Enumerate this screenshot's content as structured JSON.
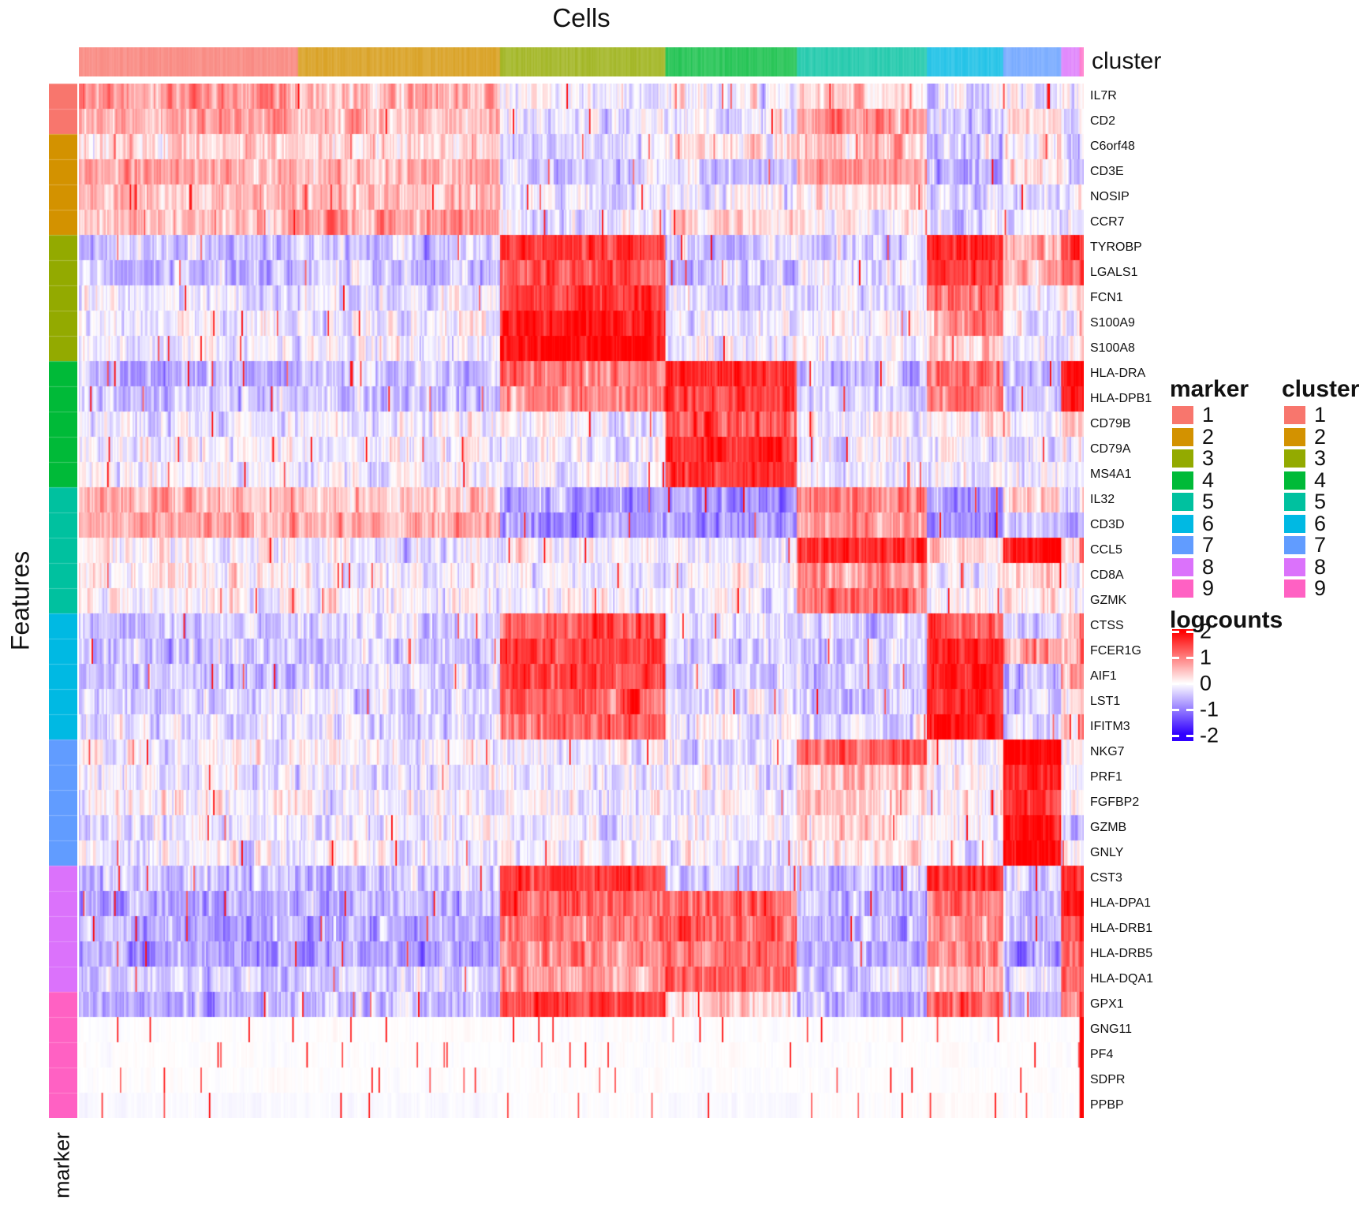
{
  "title": "Cells",
  "y_axis_label": "Features",
  "row_annotation_axis_label": "marker",
  "col_annotation_label": "cluster",
  "legends": {
    "marker": {
      "title": "marker",
      "labels": [
        "1",
        "2",
        "3",
        "4",
        "5",
        "6",
        "7",
        "8",
        "9"
      ]
    },
    "cluster": {
      "title": "cluster",
      "labels": [
        "1",
        "2",
        "3",
        "4",
        "5",
        "6",
        "7",
        "8",
        "9"
      ]
    },
    "logcounts": {
      "title": "logcounts",
      "tick_values": [
        2,
        1,
        0,
        -1,
        -2
      ],
      "tick_labels": [
        "2",
        "1",
        "0",
        "-1",
        "-2"
      ],
      "top_color": "#FF0000",
      "mid_color": "#FFFFFF",
      "bottom_color": "#3000FF"
    }
  },
  "palette": {
    "group_colors": [
      "#F8766D",
      "#D39200",
      "#93AA00",
      "#00BA38",
      "#00C19F",
      "#00B9E3",
      "#619CFF",
      "#DB72FB",
      "#FF61C3"
    ],
    "heat_positive": "#FF0000",
    "heat_zero": "#FFFFFF",
    "heat_negative": "#3000FF"
  },
  "chart_data": {
    "type": "heatmap",
    "title": "Cells",
    "xlabel": "Cells",
    "ylabel": "Features",
    "value_name": "logcounts",
    "value_range": [
      -2,
      2
    ],
    "clusters": [
      "1",
      "2",
      "3",
      "4",
      "5",
      "6",
      "7",
      "8",
      "9"
    ],
    "cluster_cell_counts": [
      155,
      143,
      117,
      93,
      92,
      54,
      41,
      13,
      3
    ],
    "rows": [
      {
        "gene": "IL7R",
        "marker": 1,
        "cluster_means": [
          0.9,
          0.55,
          0.0,
          -0.05,
          0.45,
          -0.2,
          -0.25,
          -0.1,
          0.0
        ]
      },
      {
        "gene": "CD2",
        "marker": 1,
        "cluster_means": [
          0.75,
          0.5,
          -0.2,
          -0.25,
          0.8,
          -0.3,
          0.35,
          -0.2,
          -0.1
        ]
      },
      {
        "gene": "C6orf48",
        "marker": 2,
        "cluster_means": [
          0.35,
          0.3,
          -0.3,
          0.15,
          0.45,
          -0.4,
          0.1,
          -0.2,
          0.0
        ]
      },
      {
        "gene": "CD3E",
        "marker": 2,
        "cluster_means": [
          0.7,
          0.6,
          -0.45,
          -0.45,
          0.75,
          -0.55,
          0.2,
          -0.4,
          -0.2
        ]
      },
      {
        "gene": "NOSIP",
        "marker": 2,
        "cluster_means": [
          0.5,
          0.45,
          -0.2,
          -0.1,
          0.3,
          -0.3,
          -0.1,
          -0.2,
          0.0
        ]
      },
      {
        "gene": "CCR7",
        "marker": 2,
        "cluster_means": [
          0.5,
          0.85,
          -0.25,
          0.35,
          -0.1,
          -0.3,
          -0.2,
          -0.1,
          0.0
        ]
      },
      {
        "gene": "TYROBP",
        "marker": 3,
        "cluster_means": [
          -0.4,
          -0.4,
          1.6,
          -0.5,
          -0.35,
          1.7,
          0.6,
          1.5,
          1.3
        ]
      },
      {
        "gene": "LGALS1",
        "marker": 3,
        "cluster_means": [
          -0.45,
          -0.4,
          1.35,
          -0.5,
          -0.2,
          1.5,
          0.6,
          1.0,
          1.5
        ]
      },
      {
        "gene": "FCN1",
        "marker": 3,
        "cluster_means": [
          -0.2,
          -0.2,
          1.55,
          -0.3,
          -0.2,
          1.1,
          -0.2,
          0.2,
          0.5
        ]
      },
      {
        "gene": "S100A9",
        "marker": 3,
        "cluster_means": [
          -0.15,
          -0.1,
          1.8,
          -0.2,
          -0.1,
          0.75,
          -0.2,
          0.0,
          0.8
        ]
      },
      {
        "gene": "S100A8",
        "marker": 3,
        "cluster_means": [
          -0.1,
          -0.1,
          1.9,
          -0.2,
          -0.1,
          0.5,
          -0.15,
          -0.1,
          0.5
        ]
      },
      {
        "gene": "HLA-DRA",
        "marker": 4,
        "cluster_means": [
          -0.55,
          -0.5,
          1.0,
          1.7,
          -0.5,
          1.2,
          -0.5,
          2.0,
          2.0
        ]
      },
      {
        "gene": "HLA-DPB1",
        "marker": 4,
        "cluster_means": [
          -0.5,
          -0.45,
          0.9,
          1.5,
          -0.4,
          1.0,
          -0.45,
          1.9,
          2.0
        ]
      },
      {
        "gene": "CD79B",
        "marker": 4,
        "cluster_means": [
          -0.2,
          -0.1,
          -0.1,
          1.3,
          -0.1,
          0.1,
          0.0,
          0.3,
          0.5
        ]
      },
      {
        "gene": "CD79A",
        "marker": 4,
        "cluster_means": [
          -0.1,
          -0.1,
          -0.1,
          1.7,
          -0.1,
          -0.1,
          -0.1,
          0.0,
          0.3
        ]
      },
      {
        "gene": "MS4A1",
        "marker": 4,
        "cluster_means": [
          -0.1,
          -0.1,
          -0.1,
          1.6,
          -0.1,
          -0.1,
          -0.1,
          0.0,
          0.0
        ]
      },
      {
        "gene": "IL32",
        "marker": 5,
        "cluster_means": [
          0.5,
          0.35,
          -0.8,
          -0.9,
          1.0,
          -0.7,
          0.45,
          -0.4,
          0.3
        ]
      },
      {
        "gene": "CD3D",
        "marker": 5,
        "cluster_means": [
          0.7,
          0.6,
          -0.9,
          -0.95,
          0.8,
          -0.9,
          -0.5,
          -0.6,
          -0.3
        ]
      },
      {
        "gene": "CCL5",
        "marker": 5,
        "cluster_means": [
          0.0,
          -0.1,
          -0.1,
          -0.2,
          1.7,
          0.35,
          1.8,
          0.4,
          1.5
        ]
      },
      {
        "gene": "CD8A",
        "marker": 5,
        "cluster_means": [
          0.1,
          0.0,
          -0.1,
          -0.1,
          0.85,
          -0.1,
          0.3,
          -0.1,
          0.0
        ]
      },
      {
        "gene": "GZMK",
        "marker": 5,
        "cluster_means": [
          0.0,
          0.0,
          -0.1,
          -0.1,
          1.1,
          -0.1,
          0.25,
          -0.1,
          0.0
        ]
      },
      {
        "gene": "CTSS",
        "marker": 6,
        "cluster_means": [
          -0.4,
          -0.3,
          1.35,
          -0.2,
          -0.4,
          1.3,
          -0.4,
          0.2,
          1.0
        ]
      },
      {
        "gene": "FCER1G",
        "marker": 6,
        "cluster_means": [
          -0.4,
          -0.35,
          1.5,
          -0.4,
          -0.4,
          1.7,
          0.8,
          0.8,
          1.3
        ]
      },
      {
        "gene": "AIF1",
        "marker": 6,
        "cluster_means": [
          -0.4,
          -0.35,
          1.5,
          -0.4,
          -0.4,
          1.8,
          -0.4,
          0.6,
          0.8
        ]
      },
      {
        "gene": "LST1",
        "marker": 6,
        "cluster_means": [
          -0.3,
          -0.3,
          1.3,
          -0.2,
          -0.35,
          1.8,
          -0.4,
          0.4,
          0.6
        ]
      },
      {
        "gene": "IFITM3",
        "marker": 6,
        "cluster_means": [
          -0.25,
          -0.2,
          1.2,
          -0.1,
          -0.3,
          1.8,
          -0.25,
          0.2,
          1.0
        ]
      },
      {
        "gene": "NKG7",
        "marker": 7,
        "cluster_means": [
          -0.1,
          -0.1,
          -0.1,
          -0.2,
          1.2,
          0.0,
          2.0,
          -0.1,
          0.2
        ]
      },
      {
        "gene": "PRF1",
        "marker": 7,
        "cluster_means": [
          -0.1,
          -0.1,
          -0.1,
          -0.1,
          0.5,
          0.0,
          1.7,
          -0.1,
          0.0
        ]
      },
      {
        "gene": "FGFBP2",
        "marker": 7,
        "cluster_means": [
          0.0,
          -0.1,
          -0.05,
          -0.1,
          0.4,
          0.0,
          1.6,
          -0.1,
          0.0
        ]
      },
      {
        "gene": "GZMB",
        "marker": 7,
        "cluster_means": [
          -0.1,
          -0.1,
          -0.1,
          -0.1,
          0.3,
          0.0,
          1.9,
          -0.1,
          0.2
        ]
      },
      {
        "gene": "GNLY",
        "marker": 7,
        "cluster_means": [
          -0.1,
          -0.1,
          -0.1,
          -0.1,
          0.3,
          -0.1,
          2.0,
          -0.1,
          0.0
        ]
      },
      {
        "gene": "CST3",
        "marker": 8,
        "cluster_means": [
          -0.5,
          -0.45,
          1.5,
          -0.4,
          -0.5,
          1.6,
          -0.5,
          1.8,
          1.8
        ]
      },
      {
        "gene": "HLA-DPA1",
        "marker": 8,
        "cluster_means": [
          -0.7,
          -0.6,
          1.2,
          1.3,
          -0.6,
          1.1,
          -0.6,
          1.8,
          2.0
        ]
      },
      {
        "gene": "HLA-DRB1",
        "marker": 8,
        "cluster_means": [
          -0.7,
          -0.6,
          1.1,
          1.2,
          -0.6,
          0.9,
          -0.6,
          1.5,
          2.0
        ]
      },
      {
        "gene": "HLA-DRB5",
        "marker": 8,
        "cluster_means": [
          -0.8,
          -0.7,
          0.9,
          1.1,
          -0.7,
          0.8,
          -0.7,
          1.3,
          1.5
        ]
      },
      {
        "gene": "HLA-DQA1",
        "marker": 8,
        "cluster_means": [
          -0.4,
          -0.3,
          0.7,
          1.2,
          -0.35,
          0.5,
          -0.3,
          1.2,
          1.5
        ]
      },
      {
        "gene": "GPX1",
        "marker": 9,
        "cluster_means": [
          -0.6,
          -0.5,
          1.5,
          0.3,
          -0.6,
          1.2,
          -0.5,
          0.8,
          1.5
        ]
      },
      {
        "gene": "GNG11",
        "marker": 9,
        "cluster_means": [
          0.0,
          0.0,
          0.0,
          0.0,
          0.0,
          0.0,
          0.0,
          0.0,
          2.0
        ]
      },
      {
        "gene": "PF4",
        "marker": 9,
        "cluster_means": [
          0.0,
          0.0,
          0.0,
          0.0,
          0.0,
          0.0,
          0.0,
          0.0,
          2.0
        ]
      },
      {
        "gene": "SDPR",
        "marker": 9,
        "cluster_means": [
          0.0,
          0.0,
          0.0,
          0.0,
          0.0,
          0.0,
          0.0,
          0.0,
          2.0
        ]
      },
      {
        "gene": "PPBP",
        "marker": 9,
        "cluster_means": [
          -0.05,
          -0.05,
          0.0,
          -0.05,
          0.0,
          0.05,
          0.0,
          0.0,
          2.0
        ]
      }
    ]
  }
}
